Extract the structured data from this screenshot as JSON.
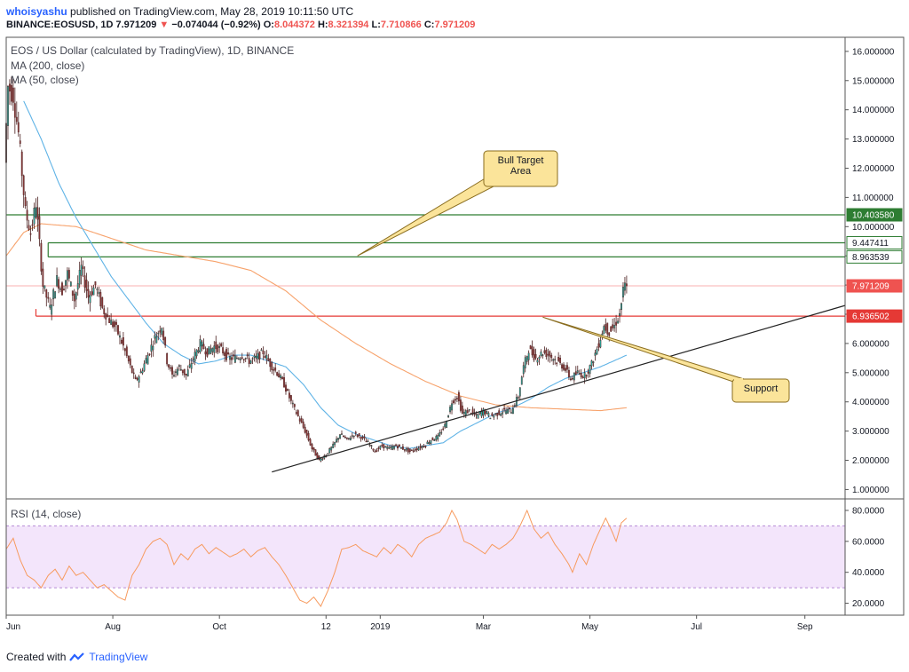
{
  "header": {
    "user": "whoisyashu",
    "published": "published on TradingView.com, May 28, 2019 10:11:50 UTC",
    "symbol": "BINANCE:EOSUSD, 1D",
    "last": "7.971209",
    "arrow": "▼",
    "change": "−0.074044 (−0.92%)",
    "o_label": "O:",
    "o": "8.044372",
    "h_label": "H:",
    "h": "8.321394",
    "l_label": "L:",
    "l": "7.710866",
    "c_label": "C:",
    "c": "7.971209"
  },
  "legend": {
    "title": "EOS / US Dollar (calculated by TradingView), 1D, BINANCE",
    "ma200": "MA (200, close)",
    "ma50": "MA (50, close)",
    "rsi": "RSI (14, close)"
  },
  "footer": {
    "created": "Created with",
    "brand": "TradingView"
  },
  "colors": {
    "up": "#26a69a",
    "down": "#8b3a3a",
    "wick": "#4a1f1f",
    "ma200": "#f7a26b",
    "ma50": "#5fb3e6",
    "rsi": "#f79a5e",
    "green_line": "#2e7d32",
    "red_line": "#e53935",
    "callout_fill": "#fbe49a",
    "callout_border": "#8a6d1f"
  },
  "chart_data": [
    {
      "type": "candlestick",
      "title": "EOS / US Dollar (calculated by TradingView), 1D, BINANCE",
      "x_ticks": [
        "Jun",
        "Aug",
        "Oct",
        "12",
        "2019",
        "Mar",
        "May",
        "Jul",
        "Sep"
      ],
      "x_tick_day": [
        0,
        61,
        122,
        183,
        214,
        273,
        334,
        395,
        457
      ],
      "y_ticks": [
        "1.000000",
        "2.000000",
        "3.000000",
        "4.000000",
        "5.000000",
        "6.000000",
        "7.000000",
        "8.000000",
        "9.000000",
        "10.000000",
        "11.000000",
        "12.000000",
        "13.000000",
        "14.000000",
        "15.000000",
        "16.000000"
      ],
      "ylim": [
        0.8,
        16.3
      ],
      "xlim_days": [
        0,
        480
      ],
      "close_anchors": [
        [
          0,
          12.2
        ],
        [
          2,
          14.8
        ],
        [
          5,
          14.5
        ],
        [
          8,
          13.2
        ],
        [
          12,
          10.5
        ],
        [
          15,
          9.8
        ],
        [
          18,
          10.8
        ],
        [
          22,
          8.0
        ],
        [
          26,
          7.2
        ],
        [
          30,
          8.2
        ],
        [
          33,
          7.8
        ],
        [
          36,
          8.4
        ],
        [
          40,
          7.5
        ],
        [
          44,
          8.6
        ],
        [
          48,
          7.6
        ],
        [
          52,
          8.0
        ],
        [
          56,
          7.2
        ],
        [
          60,
          6.8
        ],
        [
          64,
          6.5
        ],
        [
          68,
          5.9
        ],
        [
          72,
          5.2
        ],
        [
          75,
          4.7
        ],
        [
          78,
          5.0
        ],
        [
          82,
          5.6
        ],
        [
          86,
          6.2
        ],
        [
          90,
          6.6
        ],
        [
          93,
          5.4
        ],
        [
          96,
          4.9
        ],
        [
          100,
          5.2
        ],
        [
          104,
          4.9
        ],
        [
          108,
          5.5
        ],
        [
          112,
          6.0
        ],
        [
          116,
          5.7
        ],
        [
          120,
          5.9
        ],
        [
          124,
          5.8
        ],
        [
          128,
          5.5
        ],
        [
          132,
          5.5
        ],
        [
          136,
          5.6
        ],
        [
          140,
          5.4
        ],
        [
          144,
          5.5
        ],
        [
          148,
          5.7
        ],
        [
          152,
          5.3
        ],
        [
          156,
          5.0
        ],
        [
          160,
          4.6
        ],
        [
          164,
          4.0
        ],
        [
          168,
          3.5
        ],
        [
          172,
          3.0
        ],
        [
          176,
          2.4
        ],
        [
          180,
          2.0
        ],
        [
          184,
          2.2
        ],
        [
          188,
          2.5
        ],
        [
          192,
          2.9
        ],
        [
          196,
          2.7
        ],
        [
          200,
          2.9
        ],
        [
          204,
          2.8
        ],
        [
          208,
          2.6
        ],
        [
          212,
          2.3
        ],
        [
          216,
          2.5
        ],
        [
          220,
          2.4
        ],
        [
          224,
          2.5
        ],
        [
          228,
          2.4
        ],
        [
          232,
          2.3
        ],
        [
          236,
          2.4
        ],
        [
          240,
          2.5
        ],
        [
          244,
          2.7
        ],
        [
          248,
          2.8
        ],
        [
          252,
          3.2
        ],
        [
          256,
          4.0
        ],
        [
          259,
          4.2
        ],
        [
          262,
          3.6
        ],
        [
          266,
          3.7
        ],
        [
          270,
          3.5
        ],
        [
          274,
          3.7
        ],
        [
          278,
          3.5
        ],
        [
          282,
          3.6
        ],
        [
          286,
          3.7
        ],
        [
          290,
          3.7
        ],
        [
          294,
          4.2
        ],
        [
          297,
          5.2
        ],
        [
          300,
          5.8
        ],
        [
          304,
          5.5
        ],
        [
          308,
          5.7
        ],
        [
          312,
          5.6
        ],
        [
          316,
          5.4
        ],
        [
          320,
          5.2
        ],
        [
          324,
          4.8
        ],
        [
          328,
          5.0
        ],
        [
          332,
          4.9
        ],
        [
          336,
          5.3
        ],
        [
          340,
          6.0
        ],
        [
          343,
          6.6
        ],
        [
          346,
          6.4
        ],
        [
          349,
          6.6
        ],
        [
          352,
          7.0
        ],
        [
          354,
          7.8
        ],
        [
          355,
          7.971209
        ]
      ],
      "last_candle": {
        "o": 8.044372,
        "h": 8.321394,
        "l": 7.710866,
        "c": 7.971209
      },
      "ma200_anchors": [
        [
          0,
          9.0
        ],
        [
          10,
          9.8
        ],
        [
          20,
          10.1
        ],
        [
          40,
          10.0
        ],
        [
          60,
          9.6
        ],
        [
          80,
          9.2
        ],
        [
          100,
          9.0
        ],
        [
          120,
          8.8
        ],
        [
          140,
          8.5
        ],
        [
          160,
          7.8
        ],
        [
          180,
          6.8
        ],
        [
          200,
          6.0
        ],
        [
          220,
          5.3
        ],
        [
          240,
          4.7
        ],
        [
          260,
          4.2
        ],
        [
          280,
          3.9
        ],
        [
          300,
          3.8
        ],
        [
          320,
          3.75
        ],
        [
          340,
          3.7
        ],
        [
          355,
          3.8
        ]
      ],
      "ma50_anchors": [
        [
          10,
          14.3
        ],
        [
          20,
          13.0
        ],
        [
          30,
          11.5
        ],
        [
          40,
          10.3
        ],
        [
          50,
          9.3
        ],
        [
          60,
          8.3
        ],
        [
          70,
          7.5
        ],
        [
          80,
          6.7
        ],
        [
          90,
          6.0
        ],
        [
          100,
          5.6
        ],
        [
          110,
          5.3
        ],
        [
          120,
          5.4
        ],
        [
          130,
          5.6
        ],
        [
          140,
          5.6
        ],
        [
          150,
          5.4
        ],
        [
          160,
          5.2
        ],
        [
          170,
          4.6
        ],
        [
          180,
          3.8
        ],
        [
          190,
          3.2
        ],
        [
          200,
          2.9
        ],
        [
          210,
          2.7
        ],
        [
          220,
          2.5
        ],
        [
          230,
          2.4
        ],
        [
          240,
          2.5
        ],
        [
          250,
          2.6
        ],
        [
          260,
          3.0
        ],
        [
          270,
          3.3
        ],
        [
          280,
          3.6
        ],
        [
          290,
          3.8
        ],
        [
          300,
          4.1
        ],
        [
          310,
          4.5
        ],
        [
          320,
          4.8
        ],
        [
          330,
          5.0
        ],
        [
          340,
          5.2
        ],
        [
          355,
          5.6
        ]
      ],
      "horizontal_levels": [
        {
          "value": 10.40358,
          "label": "10.403580",
          "color": "#2e7d32",
          "start_day": 0
        },
        {
          "value": 9.447411,
          "label": "9.447411",
          "color": "#2e7d32",
          "start_day": 24
        },
        {
          "value": 8.963539,
          "label": "8.963539",
          "color": "#2e7d32",
          "start_day": 24
        },
        {
          "value": 7.971209,
          "label": "7.971209",
          "color": "#ef5350",
          "start_day": 0,
          "faint": true
        },
        {
          "value": 6.936502,
          "label": "6.936502",
          "color": "#e53935",
          "start_day": 17
        }
      ],
      "trendline": {
        "from": [
          152,
          1.6
        ],
        "to": [
          480,
          7.3
        ]
      },
      "annotations": [
        {
          "text_lines": [
            "Bull Target",
            "Area"
          ],
          "anchor": [
            201,
            9.0
          ]
        },
        {
          "text_lines": [
            "Support"
          ],
          "anchor": [
            307,
            6.9
          ]
        }
      ]
    },
    {
      "type": "line",
      "title": "RSI (14, close)",
      "y_ticks": [
        "20.0000",
        "40.0000",
        "60.0000",
        "80.0000"
      ],
      "ylim": [
        14,
        84
      ],
      "band": [
        30,
        70
      ],
      "rsi_anchors": [
        [
          0,
          55
        ],
        [
          4,
          62
        ],
        [
          8,
          48
        ],
        [
          12,
          38
        ],
        [
          16,
          35
        ],
        [
          20,
          30
        ],
        [
          24,
          38
        ],
        [
          28,
          42
        ],
        [
          32,
          35
        ],
        [
          36,
          44
        ],
        [
          40,
          38
        ],
        [
          44,
          40
        ],
        [
          48,
          35
        ],
        [
          52,
          30
        ],
        [
          56,
          32
        ],
        [
          60,
          28
        ],
        [
          64,
          24
        ],
        [
          68,
          22
        ],
        [
          72,
          38
        ],
        [
          76,
          45
        ],
        [
          80,
          55
        ],
        [
          84,
          60
        ],
        [
          88,
          62
        ],
        [
          92,
          58
        ],
        [
          96,
          45
        ],
        [
          100,
          52
        ],
        [
          104,
          48
        ],
        [
          108,
          55
        ],
        [
          112,
          58
        ],
        [
          116,
          52
        ],
        [
          120,
          56
        ],
        [
          124,
          53
        ],
        [
          128,
          50
        ],
        [
          132,
          52
        ],
        [
          136,
          55
        ],
        [
          140,
          50
        ],
        [
          144,
          54
        ],
        [
          148,
          56
        ],
        [
          152,
          50
        ],
        [
          156,
          45
        ],
        [
          160,
          38
        ],
        [
          164,
          30
        ],
        [
          168,
          22
        ],
        [
          172,
          20
        ],
        [
          176,
          24
        ],
        [
          180,
          18
        ],
        [
          184,
          28
        ],
        [
          188,
          40
        ],
        [
          192,
          55
        ],
        [
          196,
          56
        ],
        [
          200,
          58
        ],
        [
          204,
          54
        ],
        [
          208,
          52
        ],
        [
          212,
          50
        ],
        [
          216,
          56
        ],
        [
          220,
          52
        ],
        [
          224,
          58
        ],
        [
          228,
          55
        ],
        [
          232,
          50
        ],
        [
          236,
          58
        ],
        [
          240,
          62
        ],
        [
          244,
          64
        ],
        [
          248,
          66
        ],
        [
          252,
          72
        ],
        [
          255,
          80
        ],
        [
          258,
          74
        ],
        [
          262,
          60
        ],
        [
          266,
          58
        ],
        [
          270,
          55
        ],
        [
          274,
          52
        ],
        [
          278,
          58
        ],
        [
          282,
          55
        ],
        [
          286,
          58
        ],
        [
          290,
          62
        ],
        [
          294,
          70
        ],
        [
          298,
          80
        ],
        [
          302,
          68
        ],
        [
          306,
          62
        ],
        [
          310,
          66
        ],
        [
          314,
          58
        ],
        [
          318,
          52
        ],
        [
          322,
          45
        ],
        [
          324,
          40
        ],
        [
          328,
          52
        ],
        [
          332,
          45
        ],
        [
          336,
          58
        ],
        [
          340,
          68
        ],
        [
          343,
          75
        ],
        [
          346,
          68
        ],
        [
          349,
          60
        ],
        [
          352,
          72
        ],
        [
          355,
          75
        ]
      ]
    }
  ]
}
